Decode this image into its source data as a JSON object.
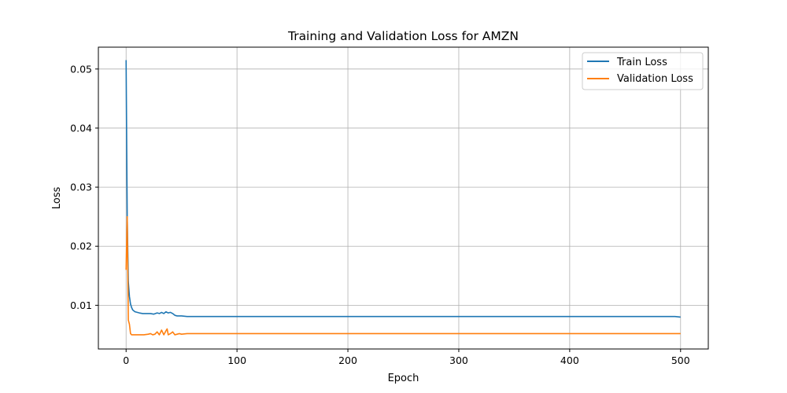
{
  "chart_data": {
    "type": "line",
    "title": "Training and Validation Loss for AMZN",
    "xlabel": "Epoch",
    "ylabel": "Loss",
    "xlim": [
      -25,
      525
    ],
    "ylim": [
      0.0026,
      0.0537
    ],
    "xticks": [
      0,
      100,
      200,
      300,
      400,
      500
    ],
    "yticks": [
      0.01,
      0.02,
      0.03,
      0.04,
      0.05
    ],
    "ytick_labels": [
      "0.01",
      "0.02",
      "0.03",
      "0.04",
      "0.05"
    ],
    "grid": true,
    "legend_position": "upper right",
    "series": [
      {
        "name": "Train Loss",
        "color": "#1f77b4",
        "points": [
          [
            0,
            0.0515
          ],
          [
            1,
            0.025
          ],
          [
            2,
            0.014
          ],
          [
            3,
            0.0115
          ],
          [
            4,
            0.0102
          ],
          [
            5,
            0.0096
          ],
          [
            6,
            0.0092
          ],
          [
            8,
            0.0089
          ],
          [
            10,
            0.0088
          ],
          [
            12,
            0.0087
          ],
          [
            15,
            0.0086
          ],
          [
            18,
            0.0086
          ],
          [
            20,
            0.0086
          ],
          [
            22,
            0.0086
          ],
          [
            25,
            0.0085
          ],
          [
            28,
            0.0087
          ],
          [
            30,
            0.0086
          ],
          [
            32,
            0.0088
          ],
          [
            34,
            0.0086
          ],
          [
            36,
            0.0089
          ],
          [
            38,
            0.0087
          ],
          [
            40,
            0.0088
          ],
          [
            42,
            0.0086
          ],
          [
            44,
            0.0083
          ],
          [
            46,
            0.0082
          ],
          [
            50,
            0.0082
          ],
          [
            55,
            0.0081
          ],
          [
            60,
            0.0081
          ],
          [
            70,
            0.0081
          ],
          [
            80,
            0.0081
          ],
          [
            90,
            0.0081
          ],
          [
            100,
            0.0081
          ],
          [
            120,
            0.0081
          ],
          [
            140,
            0.0081
          ],
          [
            160,
            0.0081
          ],
          [
            180,
            0.0081
          ],
          [
            200,
            0.0081
          ],
          [
            220,
            0.0081
          ],
          [
            240,
            0.0081
          ],
          [
            260,
            0.0081
          ],
          [
            280,
            0.0081
          ],
          [
            300,
            0.0081
          ],
          [
            320,
            0.0081
          ],
          [
            340,
            0.0081
          ],
          [
            360,
            0.0081
          ],
          [
            380,
            0.0081
          ],
          [
            400,
            0.0081
          ],
          [
            420,
            0.0081
          ],
          [
            440,
            0.0081
          ],
          [
            460,
            0.0081
          ],
          [
            480,
            0.0081
          ],
          [
            495,
            0.0081
          ],
          [
            500,
            0.008
          ]
        ]
      },
      {
        "name": "Validation Loss",
        "color": "#ff7f0e",
        "points": [
          [
            0,
            0.016
          ],
          [
            1,
            0.025
          ],
          [
            2,
            0.0075
          ],
          [
            3,
            0.0068
          ],
          [
            4,
            0.0052
          ],
          [
            5,
            0.005
          ],
          [
            8,
            0.005
          ],
          [
            12,
            0.005
          ],
          [
            16,
            0.005
          ],
          [
            20,
            0.0051
          ],
          [
            22,
            0.0052
          ],
          [
            24,
            0.005
          ],
          [
            26,
            0.0051
          ],
          [
            28,
            0.0055
          ],
          [
            30,
            0.005
          ],
          [
            32,
            0.0058
          ],
          [
            34,
            0.005
          ],
          [
            36,
            0.0057
          ],
          [
            37,
            0.006
          ],
          [
            38,
            0.005
          ],
          [
            40,
            0.0052
          ],
          [
            42,
            0.0055
          ],
          [
            44,
            0.005
          ],
          [
            46,
            0.0051
          ],
          [
            48,
            0.0052
          ],
          [
            50,
            0.0051
          ],
          [
            55,
            0.0052
          ],
          [
            60,
            0.0052
          ],
          [
            70,
            0.0052
          ],
          [
            80,
            0.0052
          ],
          [
            90,
            0.0052
          ],
          [
            100,
            0.0052
          ],
          [
            150,
            0.0052
          ],
          [
            200,
            0.0052
          ],
          [
            250,
            0.0052
          ],
          [
            300,
            0.0052
          ],
          [
            350,
            0.0052
          ],
          [
            400,
            0.0052
          ],
          [
            450,
            0.0052
          ],
          [
            500,
            0.0052
          ]
        ]
      }
    ]
  }
}
